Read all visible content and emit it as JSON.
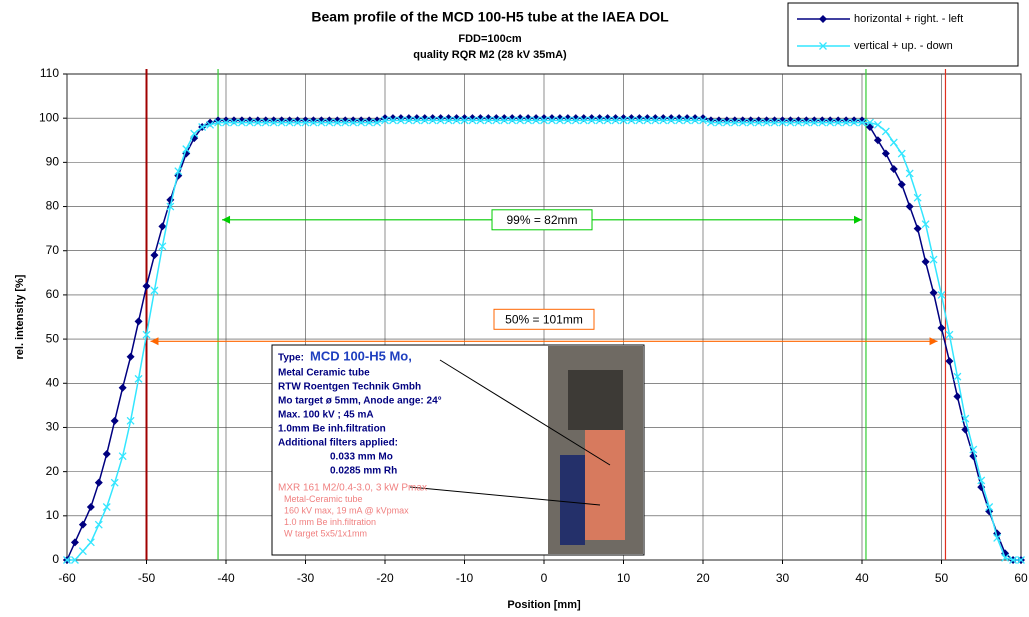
{
  "chart_data": {
    "type": "line",
    "title": "Beam profile of the MCD 100-H5 tube  at the IAEA DOL",
    "subtitle": [
      "FDD=100cm",
      "quality  RQR M2 (28 kV  35mA)"
    ],
    "x_label": "Position [mm]",
    "y_label": "rel. intensity [%]",
    "x": [
      -60,
      -59,
      -58,
      -57,
      -56,
      -55,
      -54,
      -53,
      -52,
      -51,
      -50,
      -49,
      -48,
      -47,
      -46,
      -45,
      -44,
      -43,
      -42,
      -41,
      -40,
      -39,
      -38,
      -37,
      -36,
      -35,
      -34,
      -33,
      -32,
      -31,
      -30,
      -29,
      -28,
      -27,
      -26,
      -25,
      -24,
      -23,
      -22,
      -21,
      -20,
      -19,
      -18,
      -17,
      -16,
      -15,
      -14,
      -13,
      -12,
      -11,
      -10,
      -9,
      -8,
      -7,
      -6,
      -5,
      -4,
      -3,
      -2,
      -1,
      0,
      1,
      2,
      3,
      4,
      5,
      6,
      7,
      8,
      9,
      10,
      11,
      12,
      13,
      14,
      15,
      16,
      17,
      18,
      19,
      20,
      21,
      22,
      23,
      24,
      25,
      26,
      27,
      28,
      29,
      30,
      31,
      32,
      33,
      34,
      35,
      36,
      37,
      38,
      39,
      40,
      41,
      42,
      43,
      44,
      45,
      46,
      47,
      48,
      49,
      50,
      51,
      52,
      53,
      54,
      55,
      56,
      57,
      58,
      59,
      60
    ],
    "series": [
      {
        "name": "horizontal + right. - left",
        "color": "#000080",
        "marker": "diamond",
        "values": [
          0,
          4,
          8,
          12,
          17.5,
          24,
          31.5,
          39,
          46,
          54,
          62,
          69,
          75.5,
          81.5,
          87,
          92,
          95.5,
          98,
          99,
          99.5,
          99.5,
          99.5,
          99.5,
          99.5,
          99.5,
          99.5,
          99.5,
          99.5,
          99.5,
          99.5,
          99.5,
          99.5,
          99.5,
          99.5,
          99.5,
          99.5,
          99.5,
          99.5,
          99.5,
          99.5,
          100,
          100,
          100,
          100,
          100,
          100,
          100,
          100,
          100,
          100,
          100,
          100,
          100,
          100,
          100,
          100,
          100,
          100,
          100,
          100,
          100,
          100,
          100,
          100,
          100,
          100,
          100,
          100,
          100,
          100,
          100,
          100,
          100,
          100,
          100,
          100,
          100,
          100,
          100,
          100,
          100,
          99.5,
          99.5,
          99.5,
          99.5,
          99.5,
          99.5,
          99.5,
          99.5,
          99.5,
          99.5,
          99.5,
          99.5,
          99.5,
          99.5,
          99.5,
          99.5,
          99.5,
          99.5,
          99.5,
          99.5,
          98,
          95,
          92,
          88.5,
          85,
          80,
          75,
          67.5,
          60.5,
          52.5,
          45,
          37,
          29.5,
          23.5,
          16.5,
          11,
          6,
          1.5,
          0,
          0
        ]
      },
      {
        "name": "vertical + up. - down",
        "color": "#33e6ff",
        "marker": "cross",
        "values": [
          0,
          0,
          2,
          4,
          8,
          12,
          17.5,
          23.5,
          31.5,
          41,
          51,
          61,
          71,
          80,
          88,
          93,
          96.5,
          98,
          98.5,
          99,
          99,
          99,
          99,
          99,
          99,
          99,
          99,
          99,
          99,
          99,
          99,
          99,
          99,
          99,
          99,
          99,
          99,
          99,
          99,
          99,
          99.5,
          99.5,
          99.5,
          99.5,
          99.5,
          99.5,
          99.5,
          99.5,
          99.5,
          99.5,
          99.5,
          99.5,
          99.5,
          99.5,
          99.5,
          99.5,
          99.5,
          99.5,
          99.5,
          99.5,
          99.5,
          99.5,
          99.5,
          99.5,
          99.5,
          99.5,
          99.5,
          99.5,
          99.5,
          99.5,
          99.5,
          99.5,
          99.5,
          99.5,
          99.5,
          99.5,
          99.5,
          99.5,
          99.5,
          99.5,
          99.5,
          99,
          99,
          99,
          99,
          99,
          99,
          99,
          99,
          99,
          99,
          99,
          99,
          99,
          99,
          99,
          99,
          99,
          99,
          99,
          99,
          99,
          98.5,
          97,
          94.5,
          92,
          87.5,
          82,
          76,
          68,
          60,
          51,
          41.5,
          32,
          25,
          18,
          12,
          5,
          0.5,
          0,
          0
        ]
      }
    ],
    "xlim": [
      -60,
      60
    ],
    "xticks": [
      -60,
      -50,
      -40,
      -30,
      -20,
      -10,
      0,
      10,
      20,
      30,
      40,
      50,
      60
    ],
    "ylim": [
      0,
      110
    ],
    "yticks": [
      0,
      10,
      20,
      30,
      40,
      50,
      60,
      70,
      80,
      90,
      100,
      110
    ],
    "grid": true,
    "legend": "top-right",
    "vlines": [
      {
        "x": -50,
        "color": "#a00000"
      },
      {
        "x": 50.5,
        "color": "#e03020"
      },
      {
        "x": -41,
        "color": "#33cc33"
      },
      {
        "x": 40.5,
        "color": "#33cc33"
      }
    ],
    "arrows": [
      {
        "label": "99% = 82mm",
        "y": 77,
        "x": [
          -40.5,
          40
        ],
        "color": "#00cc00"
      },
      {
        "label": "50% = 101mm",
        "y": 49.5,
        "x": [
          -49.5,
          49.5
        ],
        "color": "#ff6600"
      }
    ],
    "inset": {
      "type_label": "Type:",
      "model": "MCD 100-H5 Mo,",
      "lines": [
        "Metal Ceramic tube",
        "RTW Roentgen Technik Gmbh",
        "Mo target ø 5mm, Anode ange: 24°",
        "Max. 100 kV ; 45 mA",
        "1.0mm Be inh.filtration",
        "Additional filters applied:",
        "0.033 mm  Mo",
        "0.0285 mm Rh"
      ],
      "notes": [
        "MXR 161 M2/0.4-3.0, 3 kW Pmax",
        "Metal-Ceramic tube",
        "160 kV max, 19 mA @ kVpmax",
        "1.0 mm Be inh.filtration",
        "W target  5x5/1x1mm"
      ]
    }
  }
}
